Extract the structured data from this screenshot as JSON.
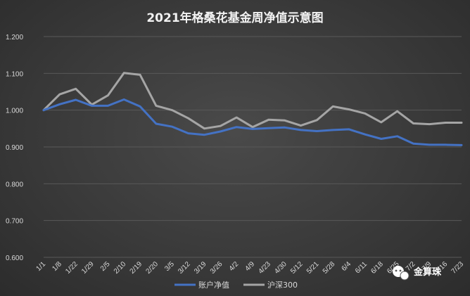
{
  "chart_data": {
    "type": "line",
    "title": "2021年格桑花基金周净值示意图",
    "xlabel": "",
    "ylabel": "",
    "categories": [
      "1/1",
      "1/8",
      "1/22",
      "1/29",
      "2/5",
      "2/10",
      "2/19",
      "2/20",
      "3/5",
      "3/12",
      "3/19",
      "3/26",
      "4/2",
      "4/9",
      "4/23",
      "4/30",
      "5/12",
      "5/21",
      "5/28",
      "6/4",
      "6/11",
      "6/18",
      "6/25",
      "7/2",
      "7/9",
      "7/16",
      "7/23"
    ],
    "ylim": [
      0.6,
      1.2
    ],
    "yticks": [
      "0.600",
      "0.700",
      "0.800",
      "0.900",
      "1.000",
      "1.100",
      "1.200"
    ],
    "grid": true,
    "legend_position": "bottom",
    "series": [
      {
        "name": "账户净值",
        "color": "#4472c4",
        "values": [
          1.0,
          1.016,
          1.028,
          1.012,
          1.012,
          1.029,
          1.01,
          0.963,
          0.955,
          0.937,
          0.933,
          0.942,
          0.954,
          0.949,
          0.951,
          0.953,
          0.946,
          0.943,
          0.946,
          0.948,
          0.934,
          0.922,
          0.929,
          0.909,
          0.906,
          0.906,
          0.905
        ]
      },
      {
        "name": "沪深300",
        "color": "#a5a5a5",
        "values": [
          1.0,
          1.043,
          1.058,
          1.015,
          1.04,
          1.101,
          1.096,
          1.012,
          1.0,
          0.978,
          0.95,
          0.957,
          0.98,
          0.954,
          0.974,
          0.972,
          0.958,
          0.973,
          1.01,
          1.002,
          0.991,
          0.967,
          0.997,
          0.964,
          0.962,
          0.966,
          0.966
        ]
      }
    ]
  },
  "watermark": {
    "text": "金算珠",
    "icon": "wechat-icon"
  }
}
